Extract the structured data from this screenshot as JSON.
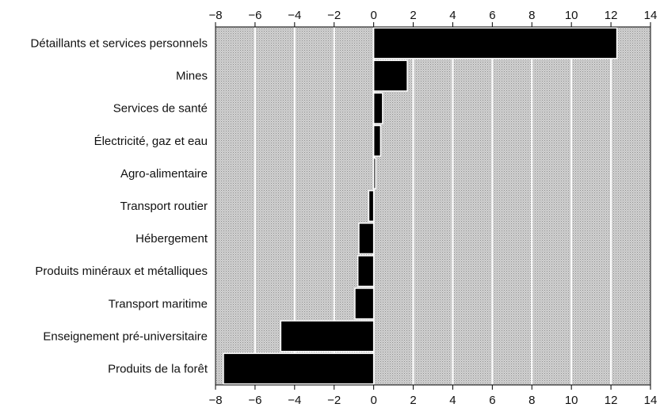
{
  "chart_data": {
    "type": "bar",
    "orientation": "horizontal",
    "categories": [
      "Détaillants et services personnels",
      "Mines",
      "Services de santé",
      "Électricité, gaz et eau",
      "Agro-alimentaire",
      "Transport routier",
      "Hébergement",
      "Produits minéraux et métalliques",
      "Transport maritime",
      "Enseignement pré-universitaire",
      "Produits de la forêt"
    ],
    "values": [
      12.3,
      1.7,
      0.45,
      0.35,
      0.1,
      -0.25,
      -0.75,
      -0.8,
      -0.95,
      -4.7,
      -7.6
    ],
    "xlim": [
      -8,
      14
    ],
    "xticks": [
      -8,
      -6,
      -4,
      -2,
      0,
      2,
      4,
      6,
      8,
      10,
      12,
      14
    ],
    "axis_position": "top and bottom",
    "grid": true,
    "colors": {
      "bar": "#000000",
      "background": "#c9c9c9",
      "gridline": "#ffffff"
    }
  }
}
